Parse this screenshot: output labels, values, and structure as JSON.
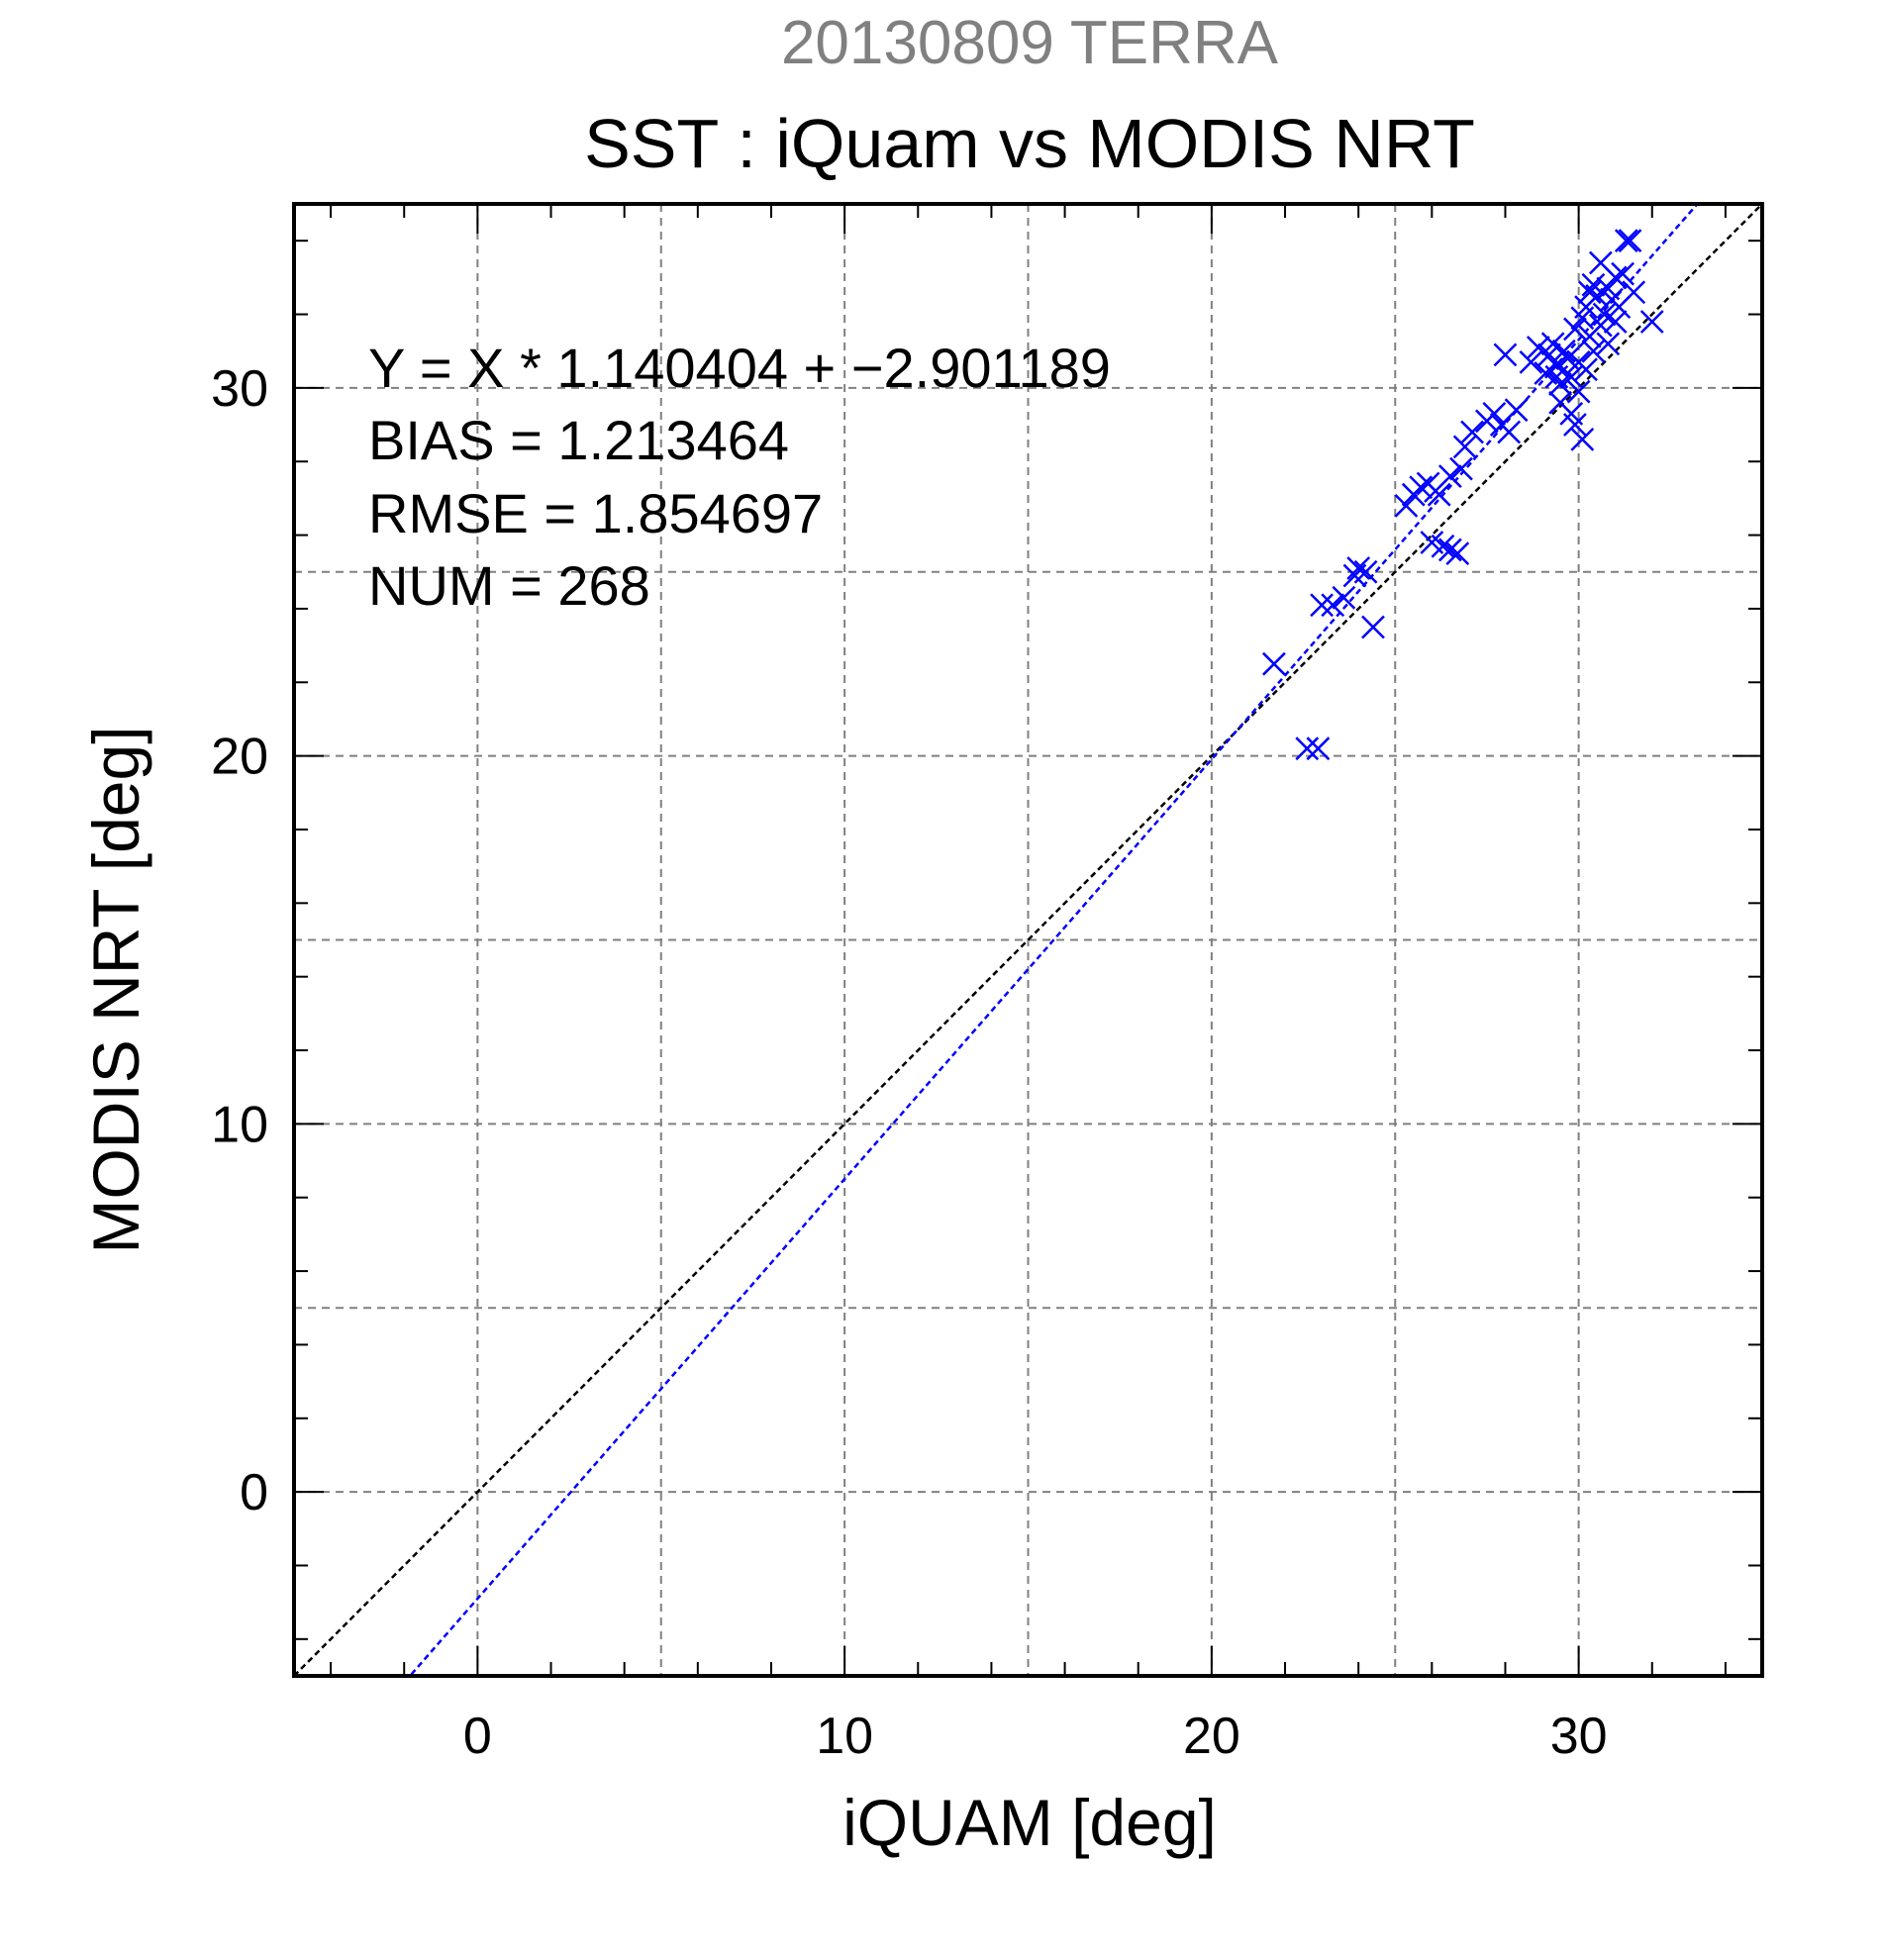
{
  "chart_data": {
    "type": "scatter",
    "supertitle": "20130809 TERRA",
    "title": "SST : iQuam vs MODIS NRT",
    "xlabel": "iQUAM [deg]",
    "ylabel": "MODIS NRT [deg]",
    "xlim": [
      -5,
      35
    ],
    "ylim": [
      -5,
      35
    ],
    "xticks": [
      0,
      10,
      20,
      30
    ],
    "yticks": [
      0,
      10,
      20,
      30
    ],
    "xtick_labels": [
      "0",
      "10",
      "20",
      "30"
    ],
    "ytick_labels": [
      "0",
      "10",
      "20",
      "30"
    ],
    "grid": true,
    "stats": {
      "equation": "Y = X * 1.140404 + −2.901189",
      "bias": "BIAS = 1.213464",
      "rmse": "RMSE = 1.854697",
      "num": "NUM = 268"
    },
    "regression": {
      "slope": 1.140404,
      "intercept": -2.901189
    },
    "identity_line": {
      "slope": 1,
      "intercept": 0
    },
    "colors": {
      "points": "#0000ff",
      "regression_line": "#0000ff",
      "identity_line": "#000000",
      "grid": "#808080",
      "supertitle": "#808080"
    },
    "points": [
      [
        21.7,
        22.5
      ],
      [
        22.6,
        20.2
      ],
      [
        22.9,
        20.2
      ],
      [
        23.0,
        24.1
      ],
      [
        23.3,
        24.1
      ],
      [
        23.6,
        24.3
      ],
      [
        23.9,
        24.9
      ],
      [
        24.0,
        25.1
      ],
      [
        24.2,
        25.0
      ],
      [
        24.4,
        23.5
      ],
      [
        25.3,
        26.8
      ],
      [
        25.5,
        27.1
      ],
      [
        25.7,
        27.3
      ],
      [
        25.9,
        27.4
      ],
      [
        26.1,
        27.2
      ],
      [
        26.2,
        27.1
      ],
      [
        26.5,
        27.6
      ],
      [
        26.8,
        27.8
      ],
      [
        26.0,
        25.8
      ],
      [
        26.3,
        25.7
      ],
      [
        26.5,
        25.6
      ],
      [
        26.7,
        25.5
      ],
      [
        26.9,
        28.4
      ],
      [
        27.1,
        28.8
      ],
      [
        27.5,
        29.1
      ],
      [
        27.7,
        29.3
      ],
      [
        27.9,
        29.0
      ],
      [
        28.1,
        28.8
      ],
      [
        28.3,
        29.4
      ],
      [
        28.0,
        30.9
      ],
      [
        28.7,
        30.7
      ],
      [
        28.9,
        31.1
      ],
      [
        29.1,
        30.4
      ],
      [
        29.2,
        30.9
      ],
      [
        29.3,
        31.2
      ],
      [
        29.4,
        30.6
      ],
      [
        29.5,
        30.1
      ],
      [
        29.5,
        29.6
      ],
      [
        29.6,
        31.0
      ],
      [
        29.7,
        30.8
      ],
      [
        29.8,
        30.3
      ],
      [
        29.8,
        29.3
      ],
      [
        29.9,
        31.6
      ],
      [
        29.9,
        29.0
      ],
      [
        30.0,
        30.7
      ],
      [
        30.0,
        29.9
      ],
      [
        30.1,
        31.9
      ],
      [
        30.1,
        28.6
      ],
      [
        30.2,
        30.5
      ],
      [
        30.2,
        32.2
      ],
      [
        30.3,
        31.4
      ],
      [
        30.4,
        32.8
      ],
      [
        30.4,
        31.0
      ],
      [
        30.5,
        32.5
      ],
      [
        30.6,
        31.7
      ],
      [
        30.6,
        33.4
      ],
      [
        30.7,
        32.0
      ],
      [
        30.8,
        32.7
      ],
      [
        30.8,
        31.2
      ],
      [
        30.9,
        32.4
      ],
      [
        31.0,
        33.0
      ],
      [
        31.0,
        31.8
      ],
      [
        31.1,
        32.2
      ],
      [
        31.2,
        33.1
      ],
      [
        31.3,
        34.0
      ],
      [
        31.4,
        34.0
      ],
      [
        31.5,
        32.6
      ],
      [
        32.0,
        31.8
      ],
      [
        29.4,
        30.3
      ],
      [
        30.3,
        32.6
      ]
    ]
  }
}
